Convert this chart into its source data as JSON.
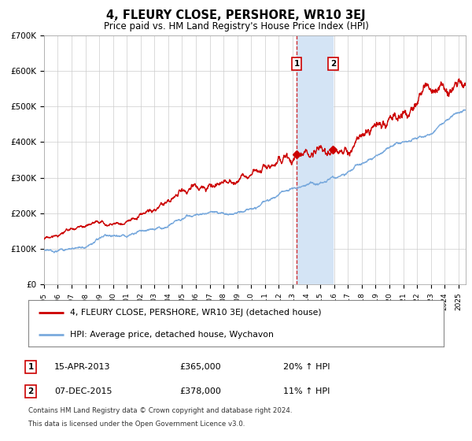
{
  "title": "4, FLEURY CLOSE, PERSHORE, WR10 3EJ",
  "subtitle": "Price paid vs. HM Land Registry's House Price Index (HPI)",
  "ylabel_ticks": [
    "£0",
    "£100K",
    "£200K",
    "£300K",
    "£400K",
    "£500K",
    "£600K",
    "£700K"
  ],
  "ytick_vals": [
    0,
    100000,
    200000,
    300000,
    400000,
    500000,
    600000,
    700000
  ],
  "ylim": [
    0,
    700000
  ],
  "xlim_start": 1995.0,
  "xlim_end": 2025.5,
  "transaction1": {
    "date_num": 2013.29,
    "price": 365000,
    "label": "1",
    "date_str": "15-APR-2013",
    "pct": "20% ↑ HPI"
  },
  "transaction2": {
    "date_num": 2015.92,
    "price": 378000,
    "label": "2",
    "date_str": "07-DEC-2015",
    "pct": "11% ↑ HPI"
  },
  "highlight_color": "#d4e4f5",
  "dashed_line_color": "#cc0000",
  "red_line_color": "#cc0000",
  "blue_line_color": "#7aaadd",
  "legend_label_red": "4, FLEURY CLOSE, PERSHORE, WR10 3EJ (detached house)",
  "legend_label_blue": "HPI: Average price, detached house, Wychavon",
  "footnote1": "Contains HM Land Registry data © Crown copyright and database right 2024.",
  "footnote2": "This data is licensed under the Open Government Licence v3.0.",
  "background_color": "#ffffff",
  "grid_color": "#cccccc",
  "xtick_years": [
    1995,
    1996,
    1997,
    1998,
    1999,
    2000,
    2001,
    2002,
    2003,
    2004,
    2005,
    2006,
    2007,
    2008,
    2009,
    2010,
    2011,
    2012,
    2013,
    2014,
    2015,
    2016,
    2017,
    2018,
    2019,
    2020,
    2021,
    2022,
    2023,
    2024,
    2025
  ]
}
